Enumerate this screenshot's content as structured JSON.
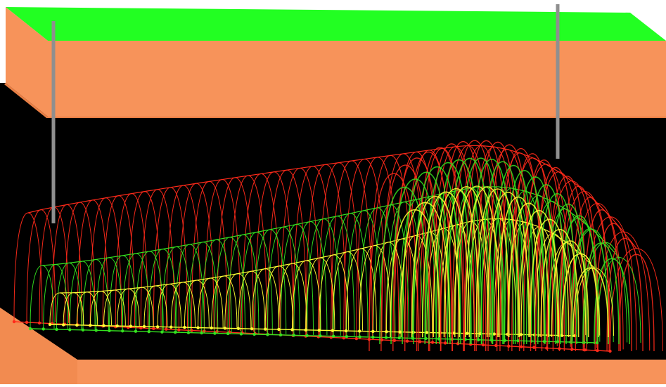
{
  "scene": {
    "kind": "3d-wireframe-arches",
    "colors": {
      "background": "#ffffff",
      "cavity": "#000000",
      "surface_top": "#22ff22",
      "rock": "#f7935a",
      "rock_edge": "#e97f45",
      "well": "#8f8f8f",
      "series_outer": "#ff2a1a",
      "series_middle": "#34e21f",
      "series_inner": "#ffff33"
    },
    "wells": [
      {
        "name": "well-left"
      },
      {
        "name": "well-right"
      }
    ],
    "arch_series": [
      {
        "name": "outer-red"
      },
      {
        "name": "middle-green"
      },
      {
        "name": "inner-yellow"
      }
    ]
  }
}
